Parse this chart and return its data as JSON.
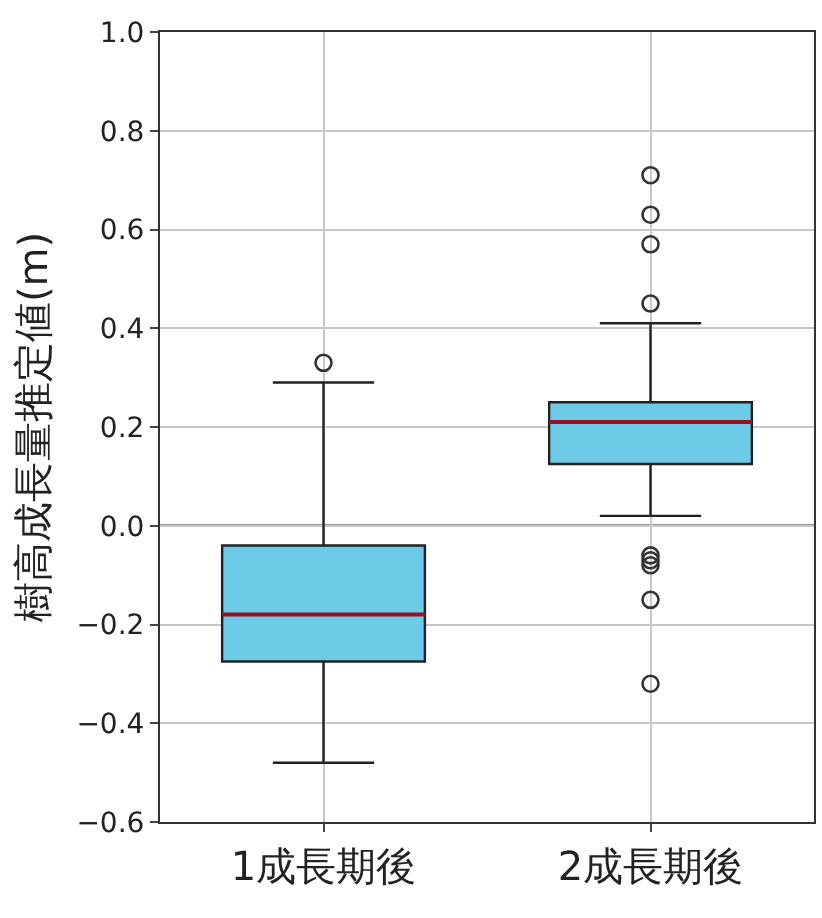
{
  "chart_data": {
    "type": "box",
    "ylabel": "樹高成長量推定値(m)",
    "categories": [
      "1成長期後",
      "2成長期後"
    ],
    "series": [
      {
        "color": "#6ecbe8",
        "boxes": [
          {
            "low": -0.48,
            "q1": -0.275,
            "median": -0.18,
            "q3": -0.04,
            "high": 0.29,
            "outliers": [
              0.33
            ]
          },
          {
            "low": 0.02,
            "q1": 0.125,
            "median": 0.21,
            "q3": 0.25,
            "high": 0.41,
            "outliers": [
              0.71,
              0.63,
              0.57,
              0.45,
              -0.06,
              -0.07,
              -0.08,
              -0.15,
              -0.32
            ]
          }
        ]
      }
    ],
    "ylim": [
      -0.6,
      1.0
    ],
    "yticks": [
      {
        "value": -0.6,
        "label": "−0.6"
      },
      {
        "value": -0.4,
        "label": "−0.4"
      },
      {
        "value": -0.2,
        "label": "−0.2"
      },
      {
        "value": 0,
        "label": "0.0"
      },
      {
        "value": 0.2,
        "label": "0.2"
      },
      {
        "value": 0.4,
        "label": "0.4"
      },
      {
        "value": 0.6,
        "label": "0.6"
      },
      {
        "value": 0.8,
        "label": "0.8"
      },
      {
        "value": 1.0,
        "label": "1.0"
      }
    ],
    "ref_lines": [
      {
        "axis": "y",
        "value": 0,
        "color": "#333333"
      }
    ],
    "grid": true,
    "marker": "circle"
  }
}
